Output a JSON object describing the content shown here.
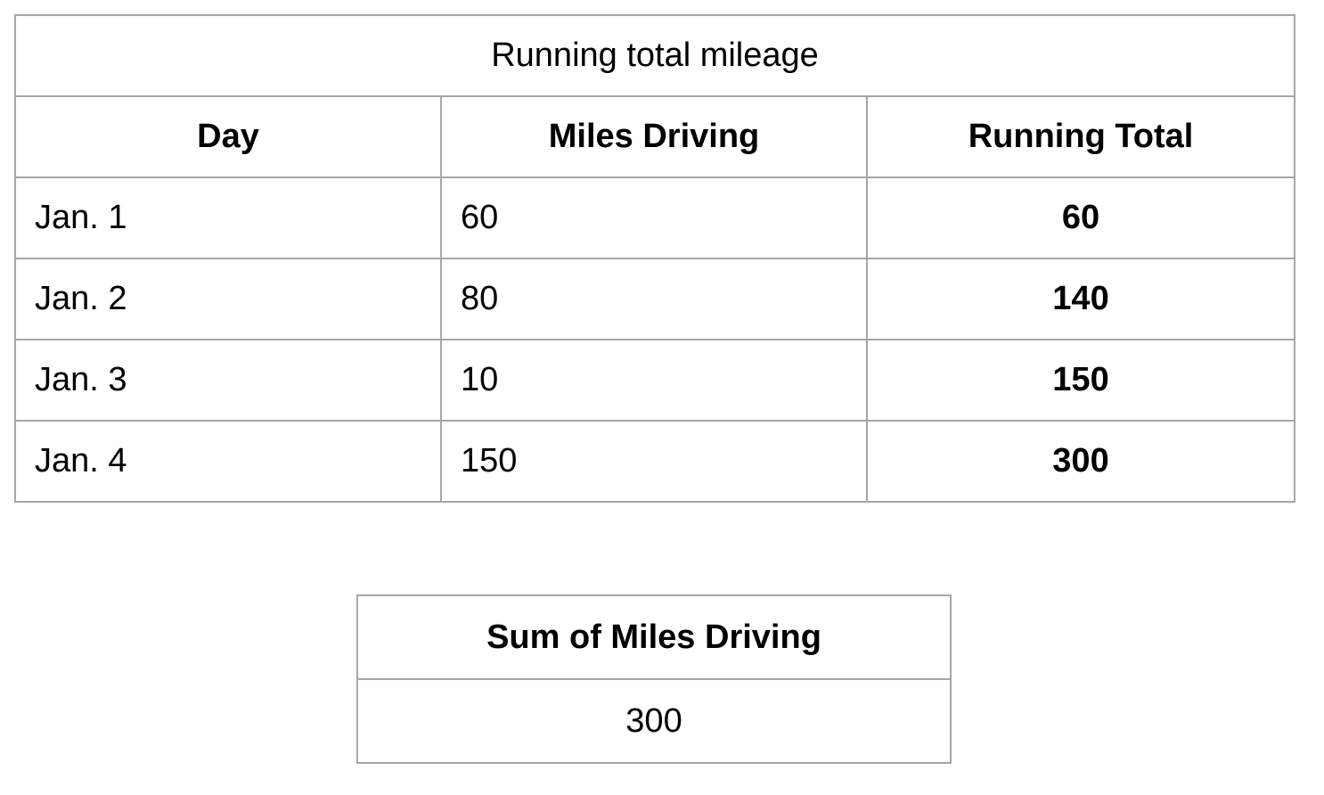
{
  "mileage_table": {
    "title": "Running total mileage",
    "headers": [
      "Day",
      "Miles Driving",
      "Running Total"
    ],
    "rows": [
      {
        "day": "Jan. 1",
        "miles": "60",
        "running_total": "60"
      },
      {
        "day": "Jan. 2",
        "miles": "80",
        "running_total": "140"
      },
      {
        "day": "Jan. 3",
        "miles": "10",
        "running_total": "150"
      },
      {
        "day": "Jan. 4",
        "miles": "150",
        "running_total": "300"
      }
    ]
  },
  "sum_table": {
    "header": "Sum of Miles Driving",
    "value": "300"
  },
  "colors": {
    "border": "#a6a6a6",
    "text": "#000000",
    "background": "#ffffff"
  }
}
